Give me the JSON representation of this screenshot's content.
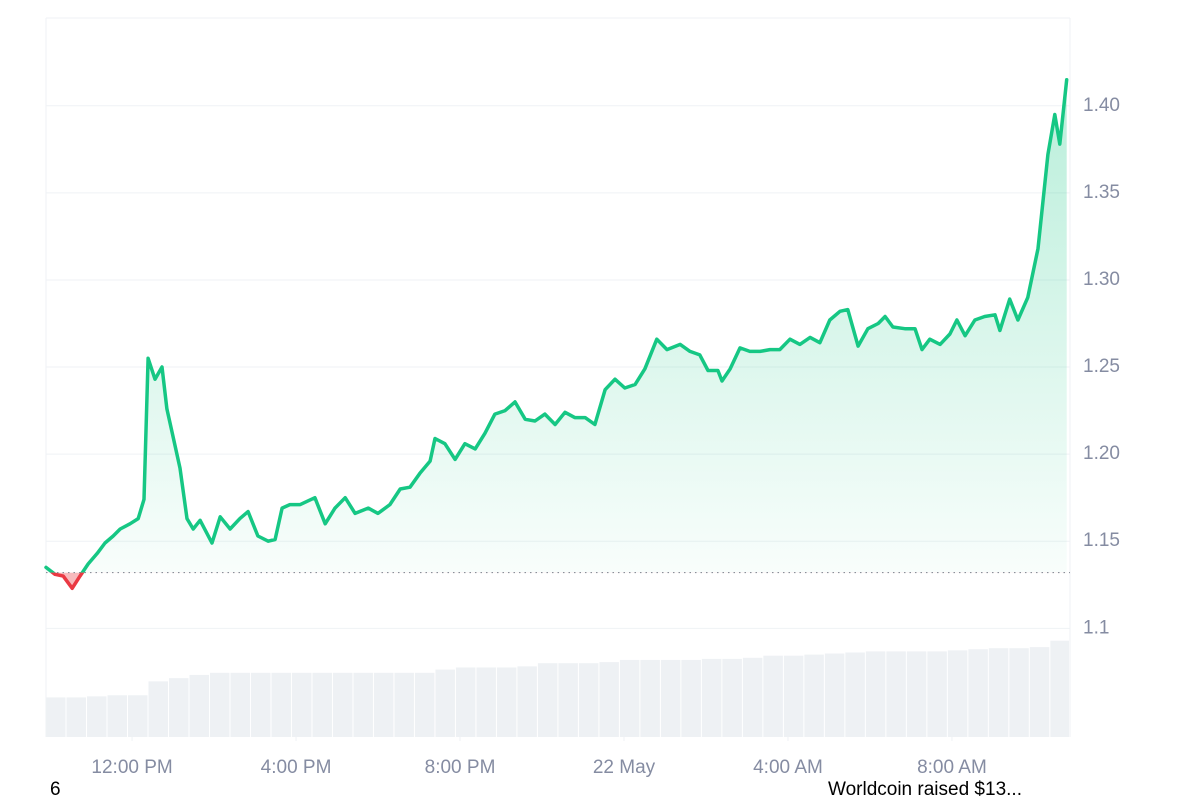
{
  "chart_data": {
    "type": "line",
    "color": "#16c784",
    "down_color": "#ea3943",
    "baseline": 1.132,
    "grid": true,
    "xlim": [
      9.9,
      34.88
    ],
    "xticks": [
      {
        "value": 12,
        "label": "12:00 PM"
      },
      {
        "value": 16,
        "label": "4:00 PM"
      },
      {
        "value": 20,
        "label": "8:00 PM"
      },
      {
        "value": 24,
        "label": "22 May"
      },
      {
        "value": 28,
        "label": "4:00 AM"
      },
      {
        "value": 32,
        "label": "8:00 AM"
      }
    ],
    "ylim": [
      1.0376,
      1.4504
    ],
    "yticks": [
      1.1,
      {
        "value": 1.15,
        "label": "1.15"
      },
      {
        "value": 1.2,
        "label": "1.20"
      },
      {
        "value": 1.25,
        "label": "1.25"
      },
      {
        "value": 1.3,
        "label": "1.30"
      },
      {
        "value": 1.35,
        "label": "1.35"
      },
      {
        "value": 1.4,
        "label": "1.40"
      }
    ],
    "x": [
      9.9,
      10.12,
      10.32,
      10.54,
      10.73,
      10.93,
      11.15,
      11.34,
      11.54,
      11.71,
      11.95,
      12.15,
      12.29,
      12.39,
      12.56,
      12.73,
      12.85,
      12.98,
      13.17,
      13.34,
      13.49,
      13.66,
      13.95,
      14.15,
      14.39,
      14.63,
      14.83,
      15.07,
      15.32,
      15.49,
      15.66,
      15.85,
      16.1,
      16.46,
      16.71,
      16.95,
      17.2,
      17.44,
      17.76,
      18.0,
      18.29,
      18.54,
      18.78,
      19.02,
      19.27,
      19.39,
      19.63,
      19.88,
      20.12,
      20.37,
      20.61,
      20.85,
      21.1,
      21.34,
      21.59,
      21.83,
      22.07,
      22.32,
      22.56,
      22.8,
      23.05,
      23.29,
      23.54,
      23.78,
      24.02,
      24.27,
      24.51,
      24.8,
      25.05,
      25.37,
      25.61,
      25.85,
      26.05,
      26.29,
      26.39,
      26.59,
      26.83,
      27.07,
      27.32,
      27.56,
      27.8,
      28.05,
      28.29,
      28.54,
      28.78,
      29.02,
      29.27,
      29.46,
      29.71,
      29.95,
      30.2,
      30.37,
      30.56,
      30.85,
      31.1,
      31.27,
      31.46,
      31.71,
      31.95,
      32.12,
      32.32,
      32.56,
      32.8,
      33.05,
      33.17,
      33.41,
      33.61,
      33.85,
      34.1,
      34.34,
      34.51,
      34.63,
      34.8
    ],
    "values": [
      1.135,
      1.131,
      1.13,
      1.123,
      1.13,
      1.137,
      1.143,
      1.149,
      1.153,
      1.157,
      1.16,
      1.163,
      1.174,
      1.255,
      1.243,
      1.25,
      1.226,
      1.212,
      1.192,
      1.163,
      1.157,
      1.162,
      1.149,
      1.164,
      1.157,
      1.163,
      1.167,
      1.153,
      1.15,
      1.151,
      1.169,
      1.171,
      1.171,
      1.175,
      1.16,
      1.169,
      1.175,
      1.166,
      1.169,
      1.166,
      1.171,
      1.18,
      1.181,
      1.189,
      1.196,
      1.209,
      1.206,
      1.197,
      1.206,
      1.203,
      1.212,
      1.223,
      1.225,
      1.23,
      1.22,
      1.219,
      1.223,
      1.217,
      1.224,
      1.221,
      1.221,
      1.217,
      1.237,
      1.243,
      1.238,
      1.24,
      1.249,
      1.266,
      1.26,
      1.263,
      1.259,
      1.257,
      1.248,
      1.248,
      1.242,
      1.249,
      1.261,
      1.259,
      1.259,
      1.26,
      1.26,
      1.266,
      1.263,
      1.267,
      1.264,
      1.277,
      1.282,
      1.283,
      1.262,
      1.272,
      1.275,
      1.279,
      1.273,
      1.272,
      1.272,
      1.26,
      1.266,
      1.263,
      1.269,
      1.277,
      1.268,
      1.277,
      1.279,
      1.28,
      1.271,
      1.289,
      1.277,
      1.29,
      1.318,
      1.372,
      1.395,
      1.378,
      1.415
    ],
    "volume": {
      "color": "#eef1f4",
      "lim": [
        0,
        100
      ],
      "x": [
        9.9,
        10.4,
        10.9,
        11.4,
        11.9,
        12.4,
        12.9,
        13.4,
        13.9,
        14.4,
        14.9,
        15.4,
        15.9,
        16.4,
        16.9,
        17.4,
        17.9,
        18.4,
        18.9,
        19.4,
        19.9,
        20.4,
        20.9,
        21.4,
        21.9,
        22.4,
        22.9,
        23.4,
        23.9,
        24.4,
        24.9,
        25.4,
        25.9,
        26.4,
        26.9,
        27.4,
        27.9,
        28.4,
        28.9,
        29.4,
        29.9,
        30.4,
        30.9,
        31.4,
        31.9,
        32.4,
        32.9,
        33.4,
        33.9,
        34.4
      ],
      "values": [
        37,
        37,
        38,
        39,
        39,
        52,
        55,
        58,
        60,
        60,
        60,
        60,
        60,
        60,
        60,
        60,
        60,
        60,
        60,
        63,
        65,
        65,
        65,
        66,
        69,
        69,
        69,
        70,
        72,
        72,
        72,
        72,
        73,
        73,
        74,
        76,
        76,
        77,
        78,
        79,
        80,
        80,
        80,
        80,
        81,
        82,
        83,
        83,
        84,
        90
      ]
    }
  },
  "footer": {
    "left": "6",
    "right": "Worldcoin raised $13..."
  }
}
